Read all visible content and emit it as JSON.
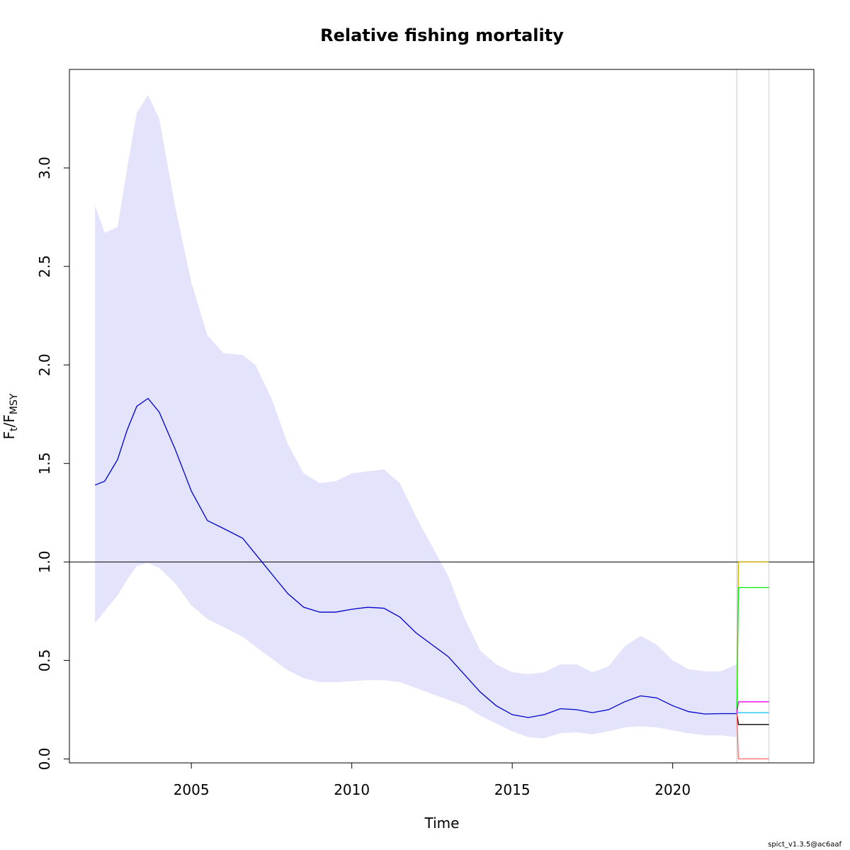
{
  "chart_data": {
    "type": "line",
    "title": "Relative fishing mortality",
    "xlabel": "Time",
    "ylabel": {
      "main": "F",
      "sub1": "t",
      "sep": "/F",
      "sub2": "MSY"
    },
    "xlim": [
      2001.2,
      2024.4
    ],
    "ylim": [
      -0.02,
      3.5
    ],
    "xticks": [
      2005,
      2010,
      2015,
      2020
    ],
    "yticks": [
      0.0,
      0.5,
      1.0,
      1.5,
      2.0,
      2.5,
      3.0
    ],
    "ytick_labels": [
      "0.0",
      "0.5",
      "1.0",
      "1.5",
      "2.0",
      "2.5",
      "3.0"
    ],
    "reference_line": {
      "y": 1.0,
      "color": "#000000"
    },
    "vertical_lines": {
      "x": [
        2022.0,
        2023.0
      ],
      "color": "#d3d3d3"
    },
    "colors": {
      "band": "#e3e3fb",
      "estimate": "#0000cd"
    },
    "series": [
      {
        "x": [
          2002.0,
          2002.3,
          2002.7,
          2003.0,
          2003.3,
          2003.65,
          2004.0,
          2004.5,
          2005.0,
          2005.5,
          2006.0,
          2006.6,
          2007.0,
          2007.5,
          2008.0,
          2008.5,
          2009.0,
          2009.5,
          2010.0,
          2010.5,
          2011.0,
          2011.5,
          2012.0,
          2012.5,
          2013.0,
          2013.5,
          2014.0,
          2014.5,
          2015.0,
          2015.5,
          2016.0,
          2016.5,
          2017.0,
          2017.5,
          2018.0,
          2018.5,
          2019.0,
          2019.5,
          2020.0,
          2020.5,
          2021.0,
          2021.5,
          2022.0
        ],
        "lower": [
          0.69,
          0.75,
          0.83,
          0.91,
          0.98,
          0.995,
          0.97,
          0.89,
          0.78,
          0.71,
          0.67,
          0.62,
          0.57,
          0.51,
          0.45,
          0.41,
          0.39,
          0.39,
          0.395,
          0.4,
          0.4,
          0.39,
          0.36,
          0.33,
          0.3,
          0.27,
          0.22,
          0.18,
          0.14,
          0.11,
          0.105,
          0.13,
          0.135,
          0.125,
          0.14,
          0.16,
          0.165,
          0.16,
          0.145,
          0.13,
          0.12,
          0.12,
          0.11
        ],
        "upper": [
          2.81,
          2.67,
          2.7,
          3.0,
          3.28,
          3.37,
          3.25,
          2.8,
          2.42,
          2.15,
          2.06,
          2.05,
          2.0,
          1.83,
          1.6,
          1.45,
          1.4,
          1.41,
          1.45,
          1.46,
          1.47,
          1.4,
          1.23,
          1.08,
          0.93,
          0.72,
          0.55,
          0.48,
          0.44,
          0.43,
          0.44,
          0.48,
          0.48,
          0.44,
          0.47,
          0.57,
          0.625,
          0.58,
          0.5,
          0.455,
          0.445,
          0.445,
          0.48
        ]
      },
      {
        "x": [
          2002.0,
          2002.3,
          2002.7,
          2003.0,
          2003.3,
          2003.65,
          2004.0,
          2004.5,
          2005.0,
          2005.5,
          2006.0,
          2006.6,
          2007.0,
          2007.5,
          2008.0,
          2008.5,
          2009.0,
          2009.5,
          2010.0,
          2010.5,
          2011.0,
          2011.5,
          2012.0,
          2012.5,
          2013.0,
          2013.5,
          2014.0,
          2014.5,
          2015.0,
          2015.5,
          2016.0,
          2016.5,
          2017.0,
          2017.5,
          2018.0,
          2018.5,
          2019.0,
          2019.5,
          2020.0,
          2020.5,
          2021.0,
          2021.5,
          2022.0
        ],
        "y": [
          1.39,
          1.41,
          1.52,
          1.67,
          1.79,
          1.83,
          1.76,
          1.57,
          1.36,
          1.21,
          1.17,
          1.12,
          1.04,
          0.94,
          0.84,
          0.77,
          0.745,
          0.745,
          0.76,
          0.77,
          0.765,
          0.72,
          0.64,
          0.58,
          0.52,
          0.43,
          0.34,
          0.27,
          0.225,
          0.21,
          0.225,
          0.255,
          0.25,
          0.235,
          0.25,
          0.29,
          0.32,
          0.31,
          0.27,
          0.24,
          0.228,
          0.23,
          0.23
        ]
      }
    ],
    "scenarios": [
      {
        "color": "#cdad00",
        "x": [
          2022.0,
          2022.05,
          2023.0
        ],
        "y": [
          0.23,
          1.0,
          1.0
        ]
      },
      {
        "color": "#00ee00",
        "x": [
          2022.0,
          2022.05,
          2023.0
        ],
        "y": [
          0.23,
          0.87,
          0.87
        ]
      },
      {
        "color": "#ee00ee",
        "x": [
          2022.0,
          2022.05,
          2023.0
        ],
        "y": [
          0.23,
          0.29,
          0.29
        ]
      },
      {
        "color": "#00bfff",
        "x": [
          2022.0,
          2022.05,
          2023.0
        ],
        "y": [
          0.23,
          0.235,
          0.235
        ]
      },
      {
        "color": "#000000",
        "x": [
          2022.0,
          2022.05,
          2023.0
        ],
        "y": [
          0.23,
          0.175,
          0.175
        ]
      },
      {
        "color": "#ff6a6a",
        "x": [
          2022.0,
          2022.05,
          2023.0
        ],
        "y": [
          0.23,
          0.0,
          0.0
        ]
      }
    ]
  },
  "footer": "spict_v1.3.5@ac6aaf"
}
